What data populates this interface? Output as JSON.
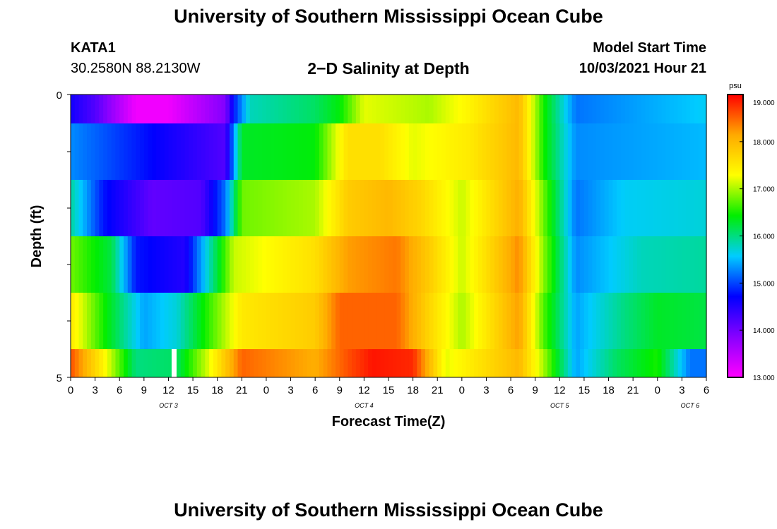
{
  "header": {
    "title": "University of Southern Mississippi Ocean Cube",
    "station": "KATA1",
    "coordinates": "30.2580N  88.2130W",
    "subtitle": "2−D Salinity at Depth",
    "model_start_label": "Model Start Time",
    "model_start_value": "10/03/2021 Hour 21"
  },
  "footer": {
    "title": "University of Southern Mississippi Ocean Cube"
  },
  "chart_data": {
    "type": "heatmap",
    "xlabel": "Forecast Time(Z)",
    "ylabel": "Depth (ft)",
    "x_ticks": [
      "0",
      "3",
      "6",
      "9",
      "12",
      "15",
      "18",
      "21",
      "0",
      "3",
      "6",
      "9",
      "12",
      "15",
      "18",
      "21",
      "0",
      "3",
      "6",
      "9",
      "12",
      "15",
      "18",
      "21",
      "0",
      "3",
      "6"
    ],
    "day_labels": [
      {
        "label": "OCT 3",
        "hours": 12
      },
      {
        "label": "OCT 4",
        "hours": 36
      },
      {
        "label": "OCT 5",
        "hours": 60
      },
      {
        "label": "OCT 6",
        "hours": 76
      }
    ],
    "x_range_hours": [
      0,
      78
    ],
    "y_tick_labels": [
      "0",
      "5"
    ],
    "ylim": [
      0,
      5
    ],
    "colorbar": {
      "unit": "psu",
      "min": 13.0,
      "max": 19.0,
      "tick_labels": [
        "19.000",
        "18.000",
        "17.000",
        "16.000",
        "15.000",
        "14.000",
        "13.000"
      ],
      "tick_values": [
        19,
        18,
        17,
        16,
        15,
        14,
        13
      ],
      "colors": [
        "#ff00ff",
        "#8800ff",
        "#0000ff",
        "#00ccff",
        "#00ee00",
        "#ffff00",
        "#ffaa00",
        "#ff0000"
      ]
    },
    "depth_bands": [
      {
        "depth": "0-0.5",
        "keys": [
          [
            0,
            14.6
          ],
          [
            3,
            14.2
          ],
          [
            8,
            13.1
          ],
          [
            12,
            13.1
          ],
          [
            19,
            13.9
          ],
          [
            20,
            14.8
          ],
          [
            22,
            15.8
          ],
          [
            30,
            16.1
          ],
          [
            33,
            16.4
          ],
          [
            36,
            17.2
          ],
          [
            44,
            17.0
          ],
          [
            49,
            17.4
          ],
          [
            55,
            18.0
          ],
          [
            58,
            16.5
          ],
          [
            62,
            15.2
          ],
          [
            78,
            15.6
          ]
        ]
      },
      {
        "depth": "0.5-1.5",
        "keys": [
          [
            0,
            15.3
          ],
          [
            19,
            14.2
          ],
          [
            20,
            15.3
          ],
          [
            21,
            16.3
          ],
          [
            30,
            16.4
          ],
          [
            34,
            17.6
          ],
          [
            38,
            17.6
          ],
          [
            42,
            17.2
          ],
          [
            49,
            17.5
          ],
          [
            55,
            18.0
          ],
          [
            58,
            16.5
          ],
          [
            62,
            15.3
          ],
          [
            78,
            15.5
          ]
        ]
      },
      {
        "depth": "1.5-2.5",
        "keys": [
          [
            0,
            15.9
          ],
          [
            4,
            14.8
          ],
          [
            10,
            14.1
          ],
          [
            16,
            14.2
          ],
          [
            19,
            15.2
          ],
          [
            21,
            16.8
          ],
          [
            30,
            17.0
          ],
          [
            34,
            17.8
          ],
          [
            39,
            18.0
          ],
          [
            43,
            17.7
          ],
          [
            48,
            17.1
          ],
          [
            55,
            18.1
          ],
          [
            58,
            16.8
          ],
          [
            62,
            15.2
          ],
          [
            68,
            15.6
          ],
          [
            78,
            15.7
          ]
        ]
      },
      {
        "depth": "2.5-3.5",
        "keys": [
          [
            0,
            16.8
          ],
          [
            5,
            16.2
          ],
          [
            8,
            14.8
          ],
          [
            14,
            14.5
          ],
          [
            17,
            15.8
          ],
          [
            20,
            17.1
          ],
          [
            30,
            17.6
          ],
          [
            34,
            18.2
          ],
          [
            40,
            18.4
          ],
          [
            44,
            17.8
          ],
          [
            48,
            17.1
          ],
          [
            55,
            18.3
          ],
          [
            58,
            16.9
          ],
          [
            62,
            15.3
          ],
          [
            70,
            15.8
          ],
          [
            78,
            15.9
          ]
        ]
      },
      {
        "depth": "3.5-4.5",
        "keys": [
          [
            0,
            17.5
          ],
          [
            4,
            16.5
          ],
          [
            9,
            15.4
          ],
          [
            13,
            15.7
          ],
          [
            17,
            16.6
          ],
          [
            21,
            17.5
          ],
          [
            30,
            17.8
          ],
          [
            33,
            18.5
          ],
          [
            40,
            18.5
          ],
          [
            44,
            17.7
          ],
          [
            48,
            17.0
          ],
          [
            55,
            18.2
          ],
          [
            58,
            16.7
          ],
          [
            62,
            15.4
          ],
          [
            68,
            16.0
          ],
          [
            72,
            16.3
          ],
          [
            78,
            16.2
          ]
        ]
      },
      {
        "depth": "4.5-5",
        "keys": [
          [
            0,
            18.6
          ],
          [
            4,
            17.4
          ],
          [
            8,
            16.0
          ],
          [
            13,
            16.1
          ],
          [
            17,
            17.2
          ],
          [
            21,
            18.5
          ],
          [
            30,
            18.1
          ],
          [
            34,
            18.6
          ],
          [
            37,
            18.9
          ],
          [
            42,
            18.8
          ],
          [
            46,
            17.2
          ],
          [
            55,
            18.0
          ],
          [
            58,
            17.0
          ],
          [
            62,
            15.4
          ],
          [
            67,
            16.1
          ],
          [
            72,
            16.5
          ],
          [
            76,
            15.2
          ],
          [
            78,
            15.2
          ]
        ]
      }
    ]
  }
}
